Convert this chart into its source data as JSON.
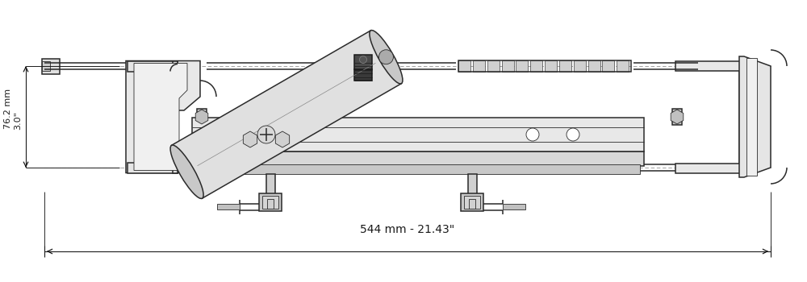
{
  "bg_color": "#ffffff",
  "line_color": "#2a2a2a",
  "dim_color": "#1a1a1a",
  "fig_width": 10.0,
  "fig_height": 3.5,
  "dpi": 100,
  "dim_horizontal_text": "544 mm - 21.43\"",
  "dim_vertical_top": "76.2 mm",
  "dim_vertical_bottom": "3.0\"",
  "lw_main": 1.1,
  "lw_thin": 0.6,
  "lw_thick": 1.6
}
